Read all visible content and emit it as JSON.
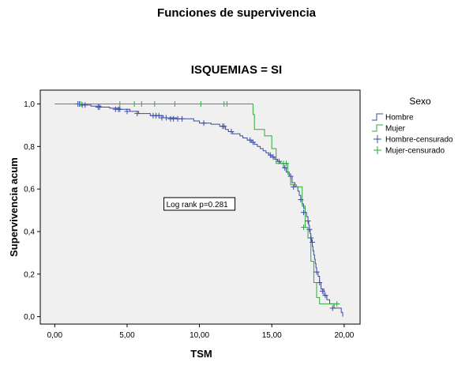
{
  "header": {
    "title": "Funciones de supervivencia",
    "subtitle": "ISQUEMIAS = SI"
  },
  "colors": {
    "hombre": "#3b4aa0",
    "mujer": "#2eaa3a",
    "plot_bg": "#f0f0f0",
    "axis": "#000000"
  },
  "chart_data": {
    "type": "line",
    "subtype": "kaplan-meier-step",
    "xlabel": "TSM",
    "ylabel": "Supervivencia acum",
    "xlim": [
      0,
      20
    ],
    "ylim": [
      0,
      1
    ],
    "x_ticks": [
      0,
      5,
      10,
      15,
      20
    ],
    "x_tick_labels": [
      "0,00",
      "5,00",
      "10,00",
      "15,00",
      "20,00"
    ],
    "y_ticks": [
      0,
      0.2,
      0.4,
      0.6,
      0.8,
      1.0
    ],
    "y_tick_labels": [
      "0,0",
      "0,2",
      "0,4",
      "0,6",
      "0,8",
      "1,0"
    ],
    "grid": false,
    "legend": {
      "title": "Sexo",
      "position": "right",
      "entries": [
        {
          "label": "Hombre",
          "kind": "line",
          "series": "hombre"
        },
        {
          "label": "Mujer",
          "kind": "line",
          "series": "mujer"
        },
        {
          "label": "Hombre-censurado",
          "kind": "cross",
          "series": "hombre"
        },
        {
          "label": "Mujer-censurado",
          "kind": "cross",
          "series": "mujer"
        }
      ]
    },
    "annotation": {
      "text": "Log rank p=0.281",
      "x": 10,
      "y": 0.53
    },
    "series": [
      {
        "id": "hombre",
        "name": "Hombre",
        "steps": [
          [
            0,
            1.0
          ],
          [
            1.8,
            0.995
          ],
          [
            2.5,
            0.99
          ],
          [
            3.2,
            0.985
          ],
          [
            3.8,
            0.98
          ],
          [
            4.5,
            0.975
          ],
          [
            5.2,
            0.965
          ],
          [
            5.8,
            0.955
          ],
          [
            6.6,
            0.945
          ],
          [
            7.5,
            0.935
          ],
          [
            8.4,
            0.93
          ],
          [
            9.6,
            0.92
          ],
          [
            10.0,
            0.91
          ],
          [
            10.8,
            0.905
          ],
          [
            11.4,
            0.895
          ],
          [
            11.8,
            0.88
          ],
          [
            12.0,
            0.87
          ],
          [
            12.3,
            0.86
          ],
          [
            12.8,
            0.85
          ],
          [
            13.0,
            0.84
          ],
          [
            13.3,
            0.83
          ],
          [
            13.6,
            0.82
          ],
          [
            13.8,
            0.81
          ],
          [
            14.0,
            0.8
          ],
          [
            14.2,
            0.79
          ],
          [
            14.4,
            0.78
          ],
          [
            14.6,
            0.77
          ],
          [
            14.8,
            0.76
          ],
          [
            15.0,
            0.75
          ],
          [
            15.2,
            0.74
          ],
          [
            15.4,
            0.73
          ],
          [
            15.6,
            0.72
          ],
          [
            15.8,
            0.7
          ],
          [
            16.0,
            0.68
          ],
          [
            16.2,
            0.66
          ],
          [
            16.4,
            0.63
          ],
          [
            16.6,
            0.61
          ],
          [
            16.8,
            0.59
          ],
          [
            16.9,
            0.57
          ],
          [
            17.0,
            0.55
          ],
          [
            17.1,
            0.53
          ],
          [
            17.2,
            0.51
          ],
          [
            17.3,
            0.49
          ],
          [
            17.4,
            0.47
          ],
          [
            17.5,
            0.45
          ],
          [
            17.55,
            0.43
          ],
          [
            17.6,
            0.41
          ],
          [
            17.65,
            0.39
          ],
          [
            17.7,
            0.37
          ],
          [
            17.75,
            0.35
          ],
          [
            17.8,
            0.33
          ],
          [
            17.85,
            0.31
          ],
          [
            17.9,
            0.29
          ],
          [
            17.95,
            0.27
          ],
          [
            18.0,
            0.25
          ],
          [
            18.05,
            0.23
          ],
          [
            18.1,
            0.21
          ],
          [
            18.2,
            0.19
          ],
          [
            18.3,
            0.16
          ],
          [
            18.4,
            0.13
          ],
          [
            18.6,
            0.1
          ],
          [
            18.8,
            0.08
          ],
          [
            19.0,
            0.06
          ],
          [
            19.3,
            0.04
          ],
          [
            19.8,
            0.02
          ],
          [
            19.9,
            0.0
          ]
        ],
        "censored": [
          [
            1.6,
            1.0
          ],
          [
            1.7,
            1.0
          ],
          [
            1.9,
            0.995
          ],
          [
            2.1,
            0.995
          ],
          [
            3.0,
            0.985
          ],
          [
            3.1,
            0.985
          ],
          [
            4.2,
            0.975
          ],
          [
            4.4,
            0.975
          ],
          [
            4.5,
            0.975
          ],
          [
            5.0,
            0.965
          ],
          [
            5.7,
            0.955
          ],
          [
            6.8,
            0.945
          ],
          [
            7.0,
            0.945
          ],
          [
            7.2,
            0.945
          ],
          [
            7.4,
            0.935
          ],
          [
            7.7,
            0.935
          ],
          [
            8.0,
            0.93
          ],
          [
            8.2,
            0.93
          ],
          [
            8.5,
            0.93
          ],
          [
            8.8,
            0.93
          ],
          [
            10.3,
            0.91
          ],
          [
            11.6,
            0.895
          ],
          [
            11.7,
            0.895
          ],
          [
            12.2,
            0.87
          ],
          [
            13.5,
            0.83
          ],
          [
            13.7,
            0.82
          ],
          [
            14.9,
            0.76
          ],
          [
            15.1,
            0.75
          ],
          [
            15.5,
            0.73
          ],
          [
            15.9,
            0.7
          ],
          [
            16.3,
            0.66
          ],
          [
            16.5,
            0.61
          ],
          [
            17.0,
            0.55
          ],
          [
            17.2,
            0.49
          ],
          [
            17.5,
            0.45
          ],
          [
            17.6,
            0.41
          ],
          [
            17.7,
            0.37
          ],
          [
            17.8,
            0.35
          ],
          [
            18.1,
            0.21
          ],
          [
            18.3,
            0.16
          ],
          [
            18.5,
            0.12
          ],
          [
            18.7,
            0.1
          ],
          [
            19.2,
            0.04
          ]
        ]
      },
      {
        "id": "mujer",
        "name": "Mujer",
        "steps": [
          [
            0,
            1.0
          ],
          [
            13.7,
            0.95
          ],
          [
            13.8,
            0.88
          ],
          [
            14.5,
            0.85
          ],
          [
            15.0,
            0.79
          ],
          [
            15.3,
            0.72
          ],
          [
            16.1,
            0.67
          ],
          [
            16.3,
            0.62
          ],
          [
            16.7,
            0.61
          ],
          [
            17.1,
            0.52
          ],
          [
            17.3,
            0.42
          ],
          [
            17.5,
            0.37
          ],
          [
            17.7,
            0.26
          ],
          [
            17.9,
            0.16
          ],
          [
            18.1,
            0.09
          ],
          [
            18.3,
            0.06
          ],
          [
            19.7,
            0.06
          ]
        ],
        "censored": [
          [
            1.8,
            1.0
          ],
          [
            4.5,
            1.0
          ],
          [
            5.5,
            1.0
          ],
          [
            6.0,
            1.0
          ],
          [
            6.9,
            1.0
          ],
          [
            8.3,
            1.0
          ],
          [
            10.1,
            1.0
          ],
          [
            11.7,
            1.0
          ],
          [
            11.9,
            1.0
          ],
          [
            15.8,
            0.72
          ],
          [
            16.0,
            0.72
          ],
          [
            17.2,
            0.42
          ],
          [
            19.5,
            0.06
          ]
        ]
      }
    ]
  }
}
